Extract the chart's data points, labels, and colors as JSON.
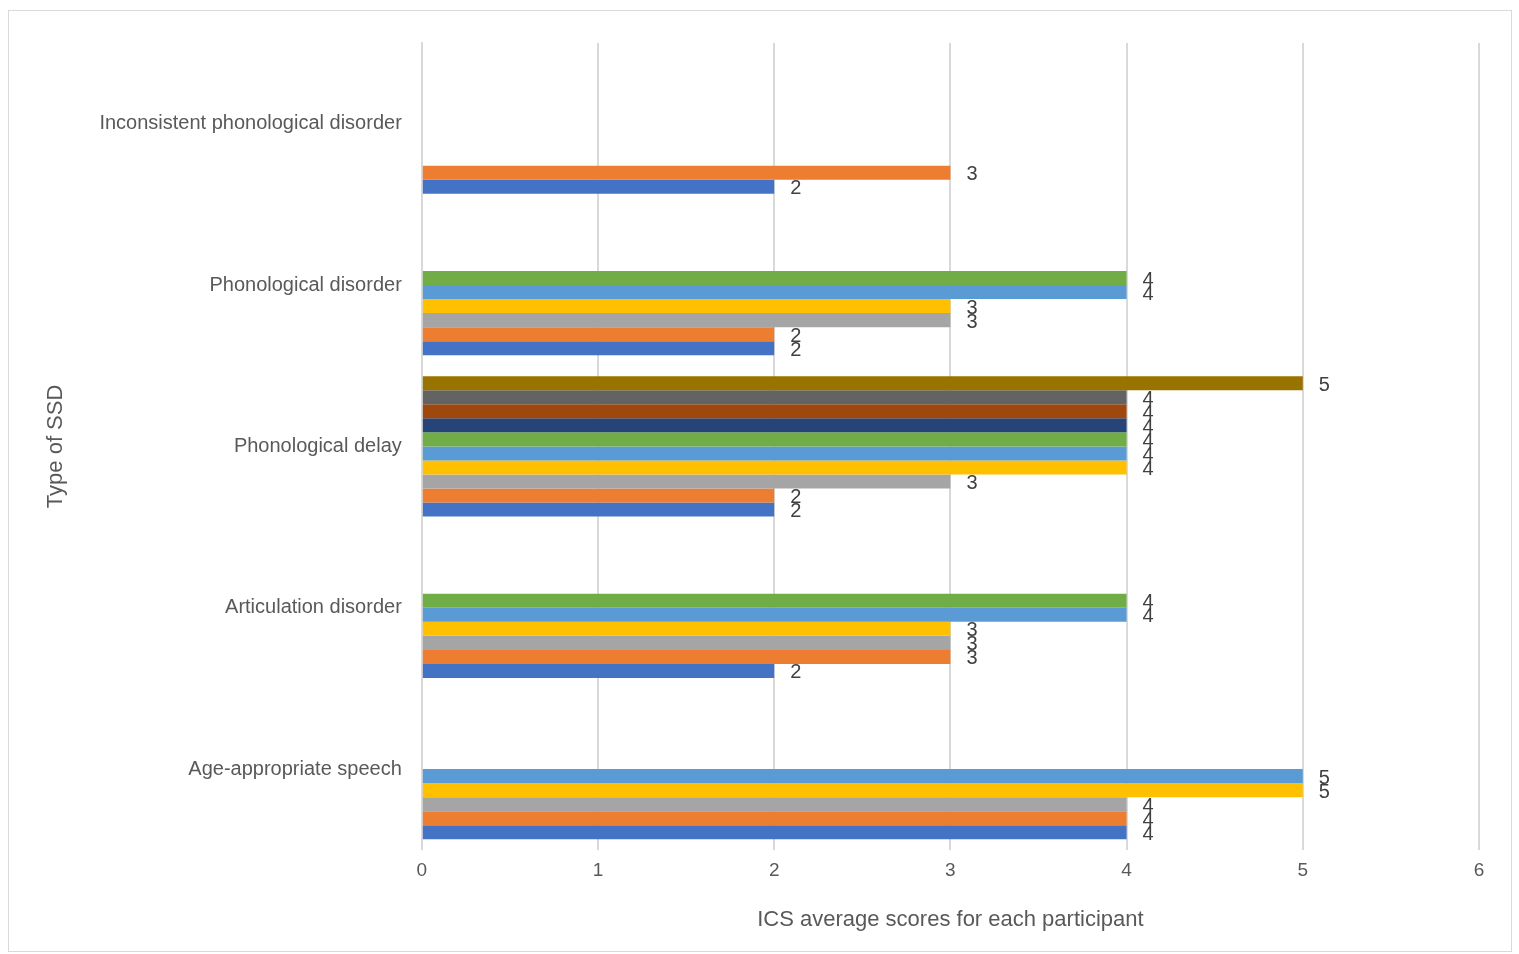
{
  "chart_data": {
    "type": "bar",
    "orientation": "horizontal",
    "xlabel": "ICS average scores for each participant",
    "ylabel": "Type of SSD",
    "categories": [
      "Inconsistent phonological disorder",
      "Phonological disorder",
      "Phonological delay",
      "Articulation disorder",
      "Age-appropriate speech"
    ],
    "series": [
      {
        "color": "#4472c4",
        "values": [
          2,
          2,
          2,
          2,
          4
        ]
      },
      {
        "color": "#ed7d31",
        "values": [
          3,
          2,
          2,
          3,
          4
        ]
      },
      {
        "color": "#a5a5a5",
        "values": [
          null,
          3,
          3,
          3,
          4
        ]
      },
      {
        "color": "#ffc000",
        "values": [
          null,
          3,
          4,
          3,
          5
        ]
      },
      {
        "color": "#5b9bd5",
        "values": [
          null,
          4,
          4,
          4,
          5
        ]
      },
      {
        "color": "#70ad47",
        "values": [
          null,
          4,
          4,
          4,
          null
        ]
      },
      {
        "color": "#264478",
        "values": [
          null,
          null,
          4,
          null,
          null
        ]
      },
      {
        "color": "#9e480e",
        "values": [
          null,
          null,
          4,
          null,
          null
        ]
      },
      {
        "color": "#636363",
        "values": [
          null,
          null,
          4,
          null,
          null
        ]
      },
      {
        "color": "#997300",
        "values": [
          null,
          null,
          5,
          null,
          null
        ]
      }
    ],
    "xlim": [
      0,
      6
    ],
    "xticks": [
      0,
      1,
      2,
      3,
      4,
      5,
      6
    ],
    "grid": "x",
    "legend": false,
    "data_labels": true
  }
}
